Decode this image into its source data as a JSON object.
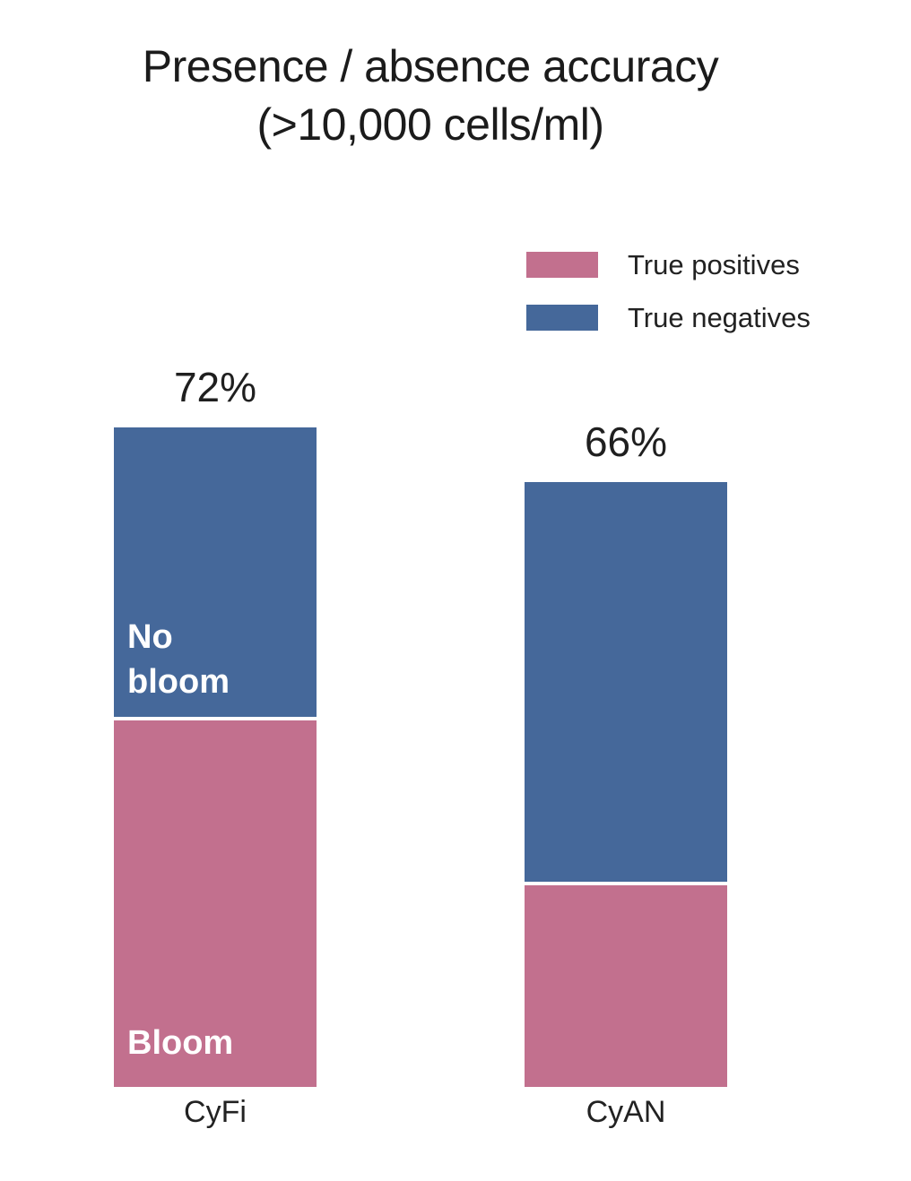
{
  "title": {
    "line1": "Presence / absence accuracy",
    "line2": "(>10,000 cells/ml)"
  },
  "legend": {
    "items": [
      {
        "label": "True positives",
        "color": "#c2708e"
      },
      {
        "label": "True negatives",
        "color": "#45689a"
      }
    ]
  },
  "chart_data": {
    "type": "bar",
    "subtype": "stacked",
    "title": "Presence / absence accuracy (>10,000 cells/ml)",
    "categories": [
      "CyFi",
      "CyAN"
    ],
    "series": [
      {
        "name": "True positives",
        "color": "#c2708e",
        "values": [
          40,
          22
        ]
      },
      {
        "name": "True negatives",
        "color": "#45689a",
        "values": [
          32,
          44
        ]
      }
    ],
    "bar_total_labels": [
      "72%",
      "66%"
    ],
    "segment_annotations": [
      {
        "category": "CyFi",
        "series": "True negatives",
        "text": "No\nbloom"
      },
      {
        "category": "CyFi",
        "series": "True positives",
        "text": "Bloom"
      }
    ],
    "ylim": [
      0,
      100
    ],
    "unit": "percent",
    "grid": false,
    "axes_visible": false,
    "legend_position": "upper right"
  }
}
